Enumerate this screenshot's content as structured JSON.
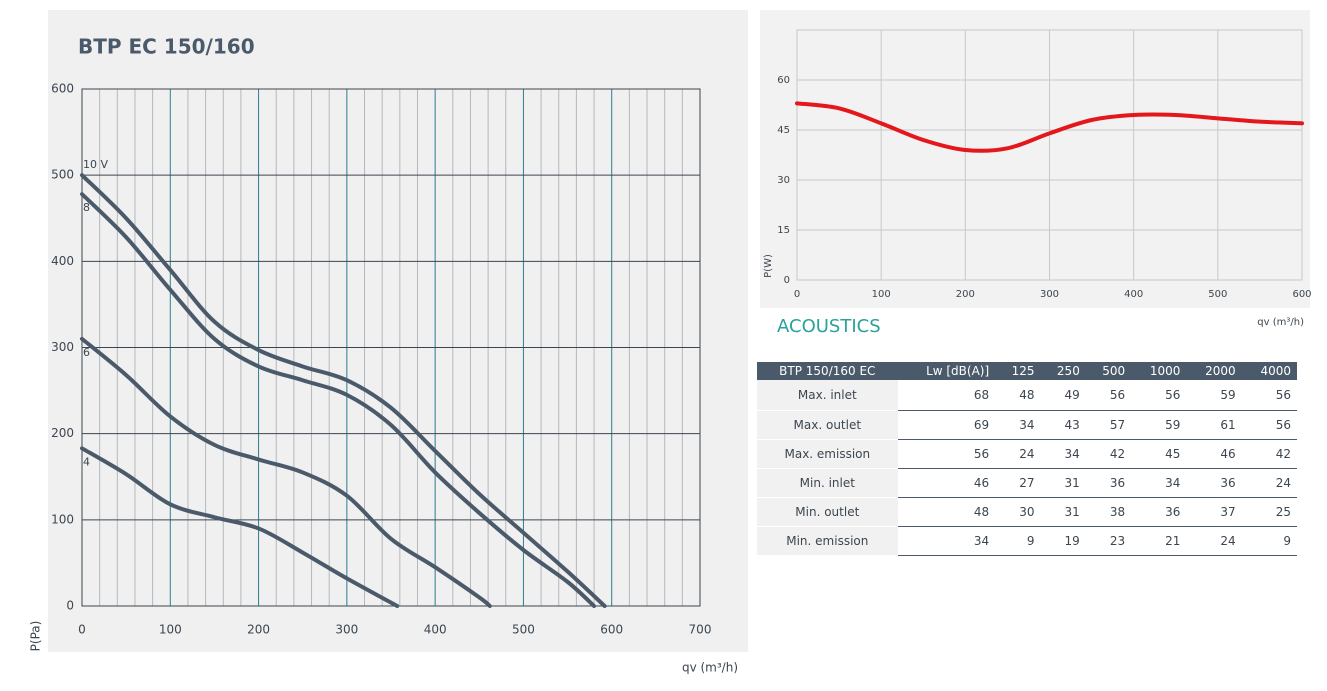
{
  "chart_data": [
    {
      "type": "line",
      "title": "BTP EC 150/160",
      "x_label": "qv (m³/h)",
      "y_label": "P(Pa)",
      "xlim": [
        0,
        700
      ],
      "xticks": [
        0,
        100,
        200,
        300,
        400,
        500,
        600,
        700
      ],
      "ylim": [
        0,
        600
      ],
      "yticks": [
        0,
        100,
        200,
        300,
        400,
        500,
        600
      ],
      "grid": true,
      "minor_grid": true,
      "x_grid_color": "#2a7f8c",
      "y_grid_color": "#3c4650",
      "series": [
        {
          "name": "10 V",
          "color": "#4b5a6a",
          "x": [
            0,
            50,
            100,
            150,
            200,
            250,
            300,
            350,
            400,
            450,
            500,
            550,
            592
          ],
          "values": [
            500,
            450,
            390,
            330,
            297,
            278,
            262,
            230,
            180,
            130,
            85,
            40,
            0
          ]
        },
        {
          "name": "8",
          "color": "#4b5a6a",
          "x": [
            0,
            50,
            100,
            150,
            200,
            250,
            300,
            350,
            400,
            450,
            500,
            550,
            580
          ],
          "values": [
            478,
            428,
            367,
            310,
            278,
            262,
            245,
            210,
            155,
            108,
            65,
            28,
            0
          ]
        },
        {
          "name": "6",
          "color": "#4b5a6a",
          "x": [
            0,
            50,
            100,
            150,
            200,
            250,
            300,
            350,
            400,
            450,
            462
          ],
          "values": [
            310,
            268,
            220,
            187,
            170,
            155,
            128,
            78,
            45,
            10,
            0
          ]
        },
        {
          "name": "4",
          "color": "#4b5a6a",
          "x": [
            0,
            50,
            100,
            150,
            200,
            250,
            300,
            357
          ],
          "values": [
            183,
            153,
            118,
            103,
            90,
            62,
            32,
            0
          ]
        }
      ]
    },
    {
      "type": "line",
      "x_label": "qv (m³/h)",
      "y_label": "P(W)",
      "xlim": [
        0,
        600
      ],
      "xticks": [
        0,
        100,
        200,
        300,
        400,
        500,
        600
      ],
      "ylim": [
        0,
        75
      ],
      "yticks": [
        0,
        15,
        30,
        45,
        60
      ],
      "grid": true,
      "x_grid_color": "#c8c8c8",
      "y_grid_color": "#c8c8c8",
      "series": [
        {
          "name": "P(W)",
          "color": "#e3171c",
          "x": [
            0,
            50,
            100,
            150,
            200,
            250,
            300,
            350,
            400,
            450,
            500,
            550,
            600
          ],
          "values": [
            53,
            51.5,
            47,
            42,
            39,
            39.5,
            44,
            48,
            49.5,
            49.5,
            48.5,
            47.5,
            47
          ]
        }
      ]
    }
  ],
  "acoustics": {
    "title": "ACOUSTICS",
    "table": {
      "header": [
        "BTP 150/160 EC",
        "Lw [dB(A)]",
        "125",
        "250",
        "500",
        "1000",
        "2000",
        "4000"
      ],
      "rows": [
        [
          "Max. inlet",
          68,
          48,
          49,
          56,
          56,
          59,
          56
        ],
        [
          "Max. outlet",
          69,
          34,
          43,
          57,
          59,
          61,
          56
        ],
        [
          "Max. emission",
          56,
          24,
          34,
          42,
          45,
          46,
          42
        ],
        [
          "Min. inlet",
          46,
          27,
          31,
          36,
          34,
          36,
          24
        ],
        [
          "Min. outlet",
          48,
          30,
          31,
          38,
          36,
          37,
          25
        ],
        [
          "Min. emission",
          34,
          9,
          19,
          23,
          21,
          24,
          9
        ]
      ]
    }
  }
}
